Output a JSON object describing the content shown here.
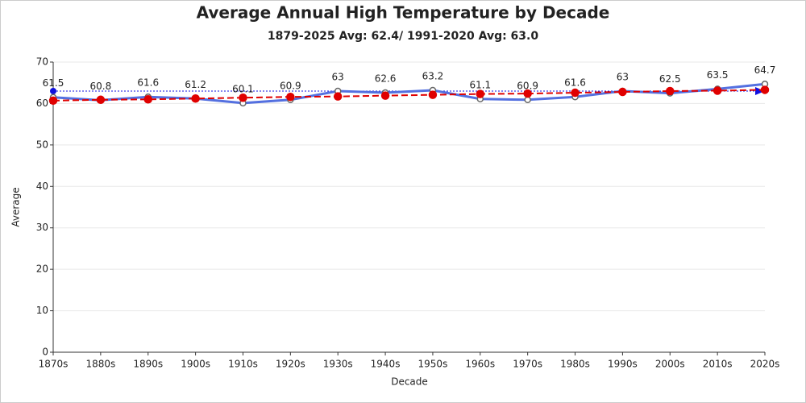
{
  "chart_data": {
    "type": "line",
    "title": "Average Annual High Temperature by Decade",
    "subtitle": "1879-2025 Avg: 62.4/ 1991-2020 Avg: 63.0",
    "x_label": "Decade",
    "y_label": "Average",
    "categories": [
      "1870s",
      "1880s",
      "1890s",
      "1900s",
      "1910s",
      "1920s",
      "1930s",
      "1940s",
      "1950s",
      "1960s",
      "1970s",
      "1980s",
      "1990s",
      "2000s",
      "2010s",
      "2020s"
    ],
    "series": [
      {
        "color": "#5470e0",
        "values": [
          61.5,
          60.8,
          61.6,
          61.2,
          60.1,
          60.9,
          63,
          62.6,
          63.2,
          61.1,
          60.9,
          61.6,
          63,
          62.5,
          63.5,
          64.7
        ],
        "data_labels": true
      },
      {
        "color": "#e00000",
        "dashed": true,
        "values": [
          60.7,
          60.9,
          61.0,
          61.2,
          61.4,
          61.6,
          61.7,
          61.9,
          62.1,
          62.3,
          62.4,
          62.6,
          62.8,
          63.0,
          63.1,
          63.3
        ]
      }
    ],
    "reference_line": {
      "value": 63,
      "color": "#1010e0"
    },
    "ylim": [
      0,
      70
    ],
    "yticks": [
      0,
      10,
      20,
      30,
      40,
      50,
      60,
      70
    ],
    "grid": true
  }
}
